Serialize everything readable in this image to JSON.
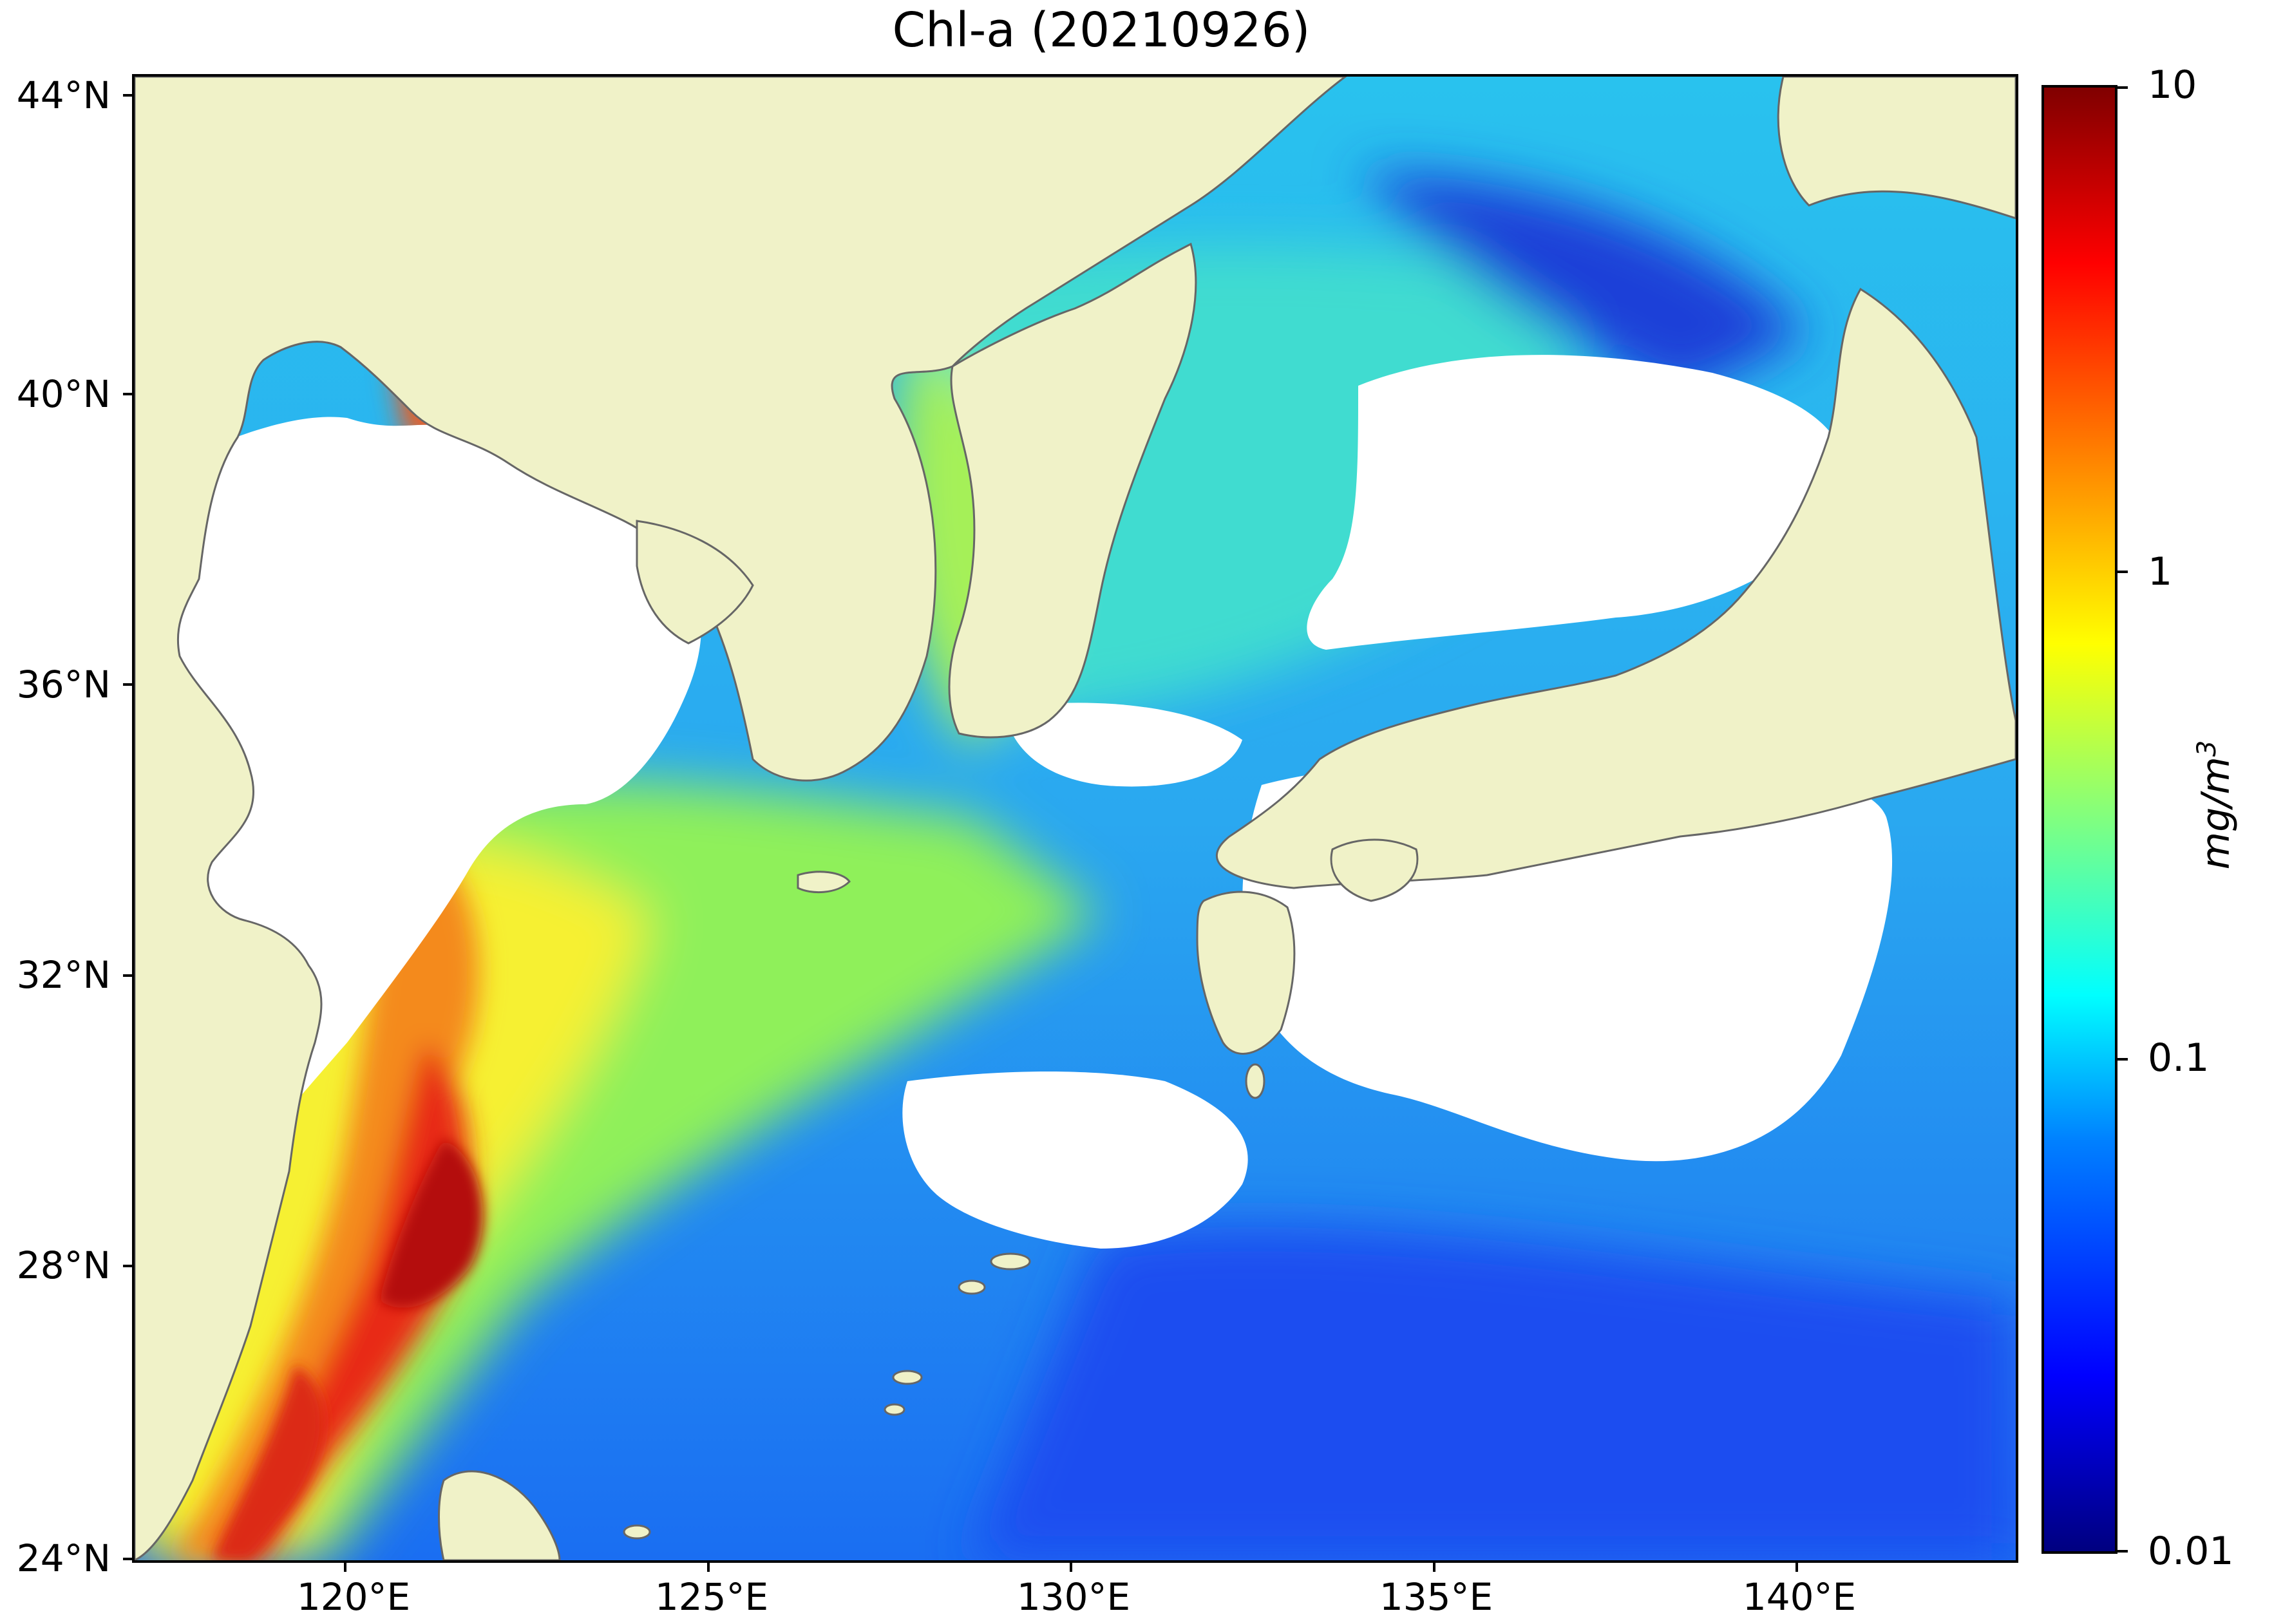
{
  "map": {
    "title": "Chl-a (20210926)",
    "lat_labels": [
      "44°N",
      "40°N",
      "36°N",
      "32°N",
      "28°N",
      "24°N"
    ],
    "lon_labels": [
      "120°E",
      "125°E",
      "130°E",
      "135°E",
      "140°E"
    ],
    "extent": {
      "lon_min": 117,
      "lon_max": 143,
      "lat_min": 24,
      "lat_max": 44.5
    },
    "colors": {
      "land": "#f0f2c8",
      "coast": "#666666",
      "cloud": "#ffffff"
    }
  },
  "colorbar": {
    "label": "mg/m",
    "label_exponent": "3",
    "tick_labels": [
      "10",
      "1",
      "0.1",
      "0.01"
    ],
    "scale": "log",
    "range": [
      0.01,
      10
    ],
    "colormap": "jet"
  }
}
